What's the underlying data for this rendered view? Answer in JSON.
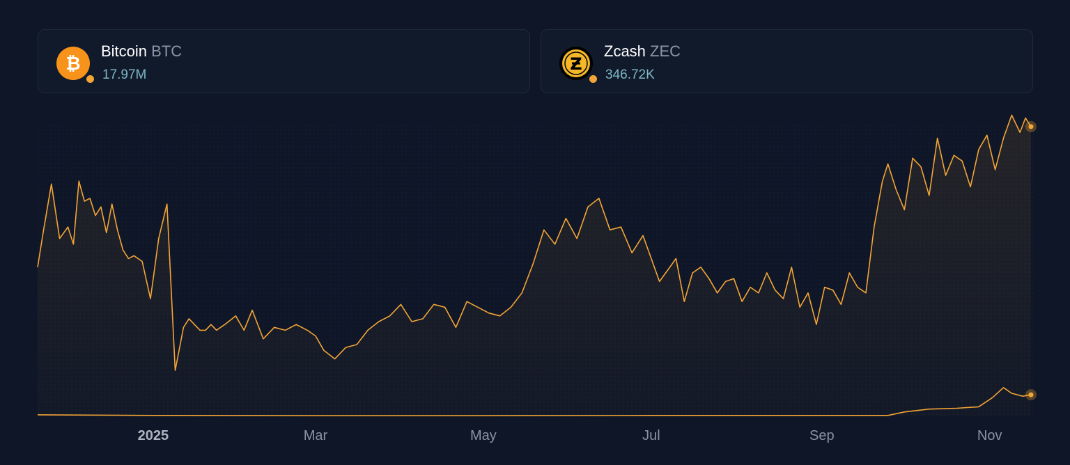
{
  "colors": {
    "background": "#0e1627",
    "line": "#f4a536",
    "value_text": "#7fb8c6",
    "ticker_text": "#8d96a6"
  },
  "cards": [
    {
      "name": "Bitcoin",
      "ticker": "BTC",
      "value": "17.97M",
      "icon": "bitcoin-icon"
    },
    {
      "name": "Zcash",
      "ticker": "ZEC",
      "value": "346.72K",
      "icon": "zcash-icon"
    }
  ],
  "chart_data": {
    "type": "line",
    "x_tick_labels": [
      "2025",
      "Mar",
      "May",
      "Jul",
      "Sep",
      "Nov"
    ],
    "x_ticks": [
      "2025-01-01",
      "2025-03-01",
      "2025-05-01",
      "2025-07-01",
      "2025-09-01",
      "2025-11-01"
    ],
    "xlim": [
      "2024-11-20",
      "2025-11-16"
    ],
    "ylim": [
      0,
      100
    ],
    "grid": false,
    "series": [
      {
        "icon": "bitcoin-icon",
        "color": "#f4a536",
        "x": [
          "2024-11-20",
          "2024-11-22",
          "2024-11-25",
          "2024-11-28",
          "2024-12-01",
          "2024-12-03",
          "2024-12-05",
          "2024-12-07",
          "2024-12-09",
          "2024-12-11",
          "2024-12-13",
          "2024-12-15",
          "2024-12-17",
          "2024-12-19",
          "2024-12-21",
          "2024-12-23",
          "2024-12-25",
          "2024-12-28",
          "2024-12-31",
          "2025-01-03",
          "2025-01-06",
          "2025-01-09",
          "2025-01-12",
          "2025-01-14",
          "2025-01-16",
          "2025-01-18",
          "2025-01-20",
          "2025-01-22",
          "2025-01-24",
          "2025-01-27",
          "2025-01-31",
          "2025-02-03",
          "2025-02-06",
          "2025-02-10",
          "2025-02-14",
          "2025-02-18",
          "2025-02-22",
          "2025-02-26",
          "2025-03-01",
          "2025-03-04",
          "2025-03-08",
          "2025-03-12",
          "2025-03-16",
          "2025-03-20",
          "2025-03-24",
          "2025-03-28",
          "2025-04-01",
          "2025-04-05",
          "2025-04-09",
          "2025-04-13",
          "2025-04-17",
          "2025-04-21",
          "2025-04-25",
          "2025-04-29",
          "2025-05-03",
          "2025-05-07",
          "2025-05-11",
          "2025-05-15",
          "2025-05-19",
          "2025-05-23",
          "2025-05-27",
          "2025-05-31",
          "2025-06-04",
          "2025-06-08",
          "2025-06-12",
          "2025-06-16",
          "2025-06-20",
          "2025-06-24",
          "2025-06-28",
          "2025-07-01",
          "2025-07-04",
          "2025-07-07",
          "2025-07-10",
          "2025-07-13",
          "2025-07-16",
          "2025-07-19",
          "2025-07-22",
          "2025-07-25",
          "2025-07-28",
          "2025-07-31",
          "2025-08-03",
          "2025-08-06",
          "2025-08-09",
          "2025-08-12",
          "2025-08-15",
          "2025-08-18",
          "2025-08-21",
          "2025-08-24",
          "2025-08-27",
          "2025-08-30",
          "2025-09-02",
          "2025-09-05",
          "2025-09-08",
          "2025-09-11",
          "2025-09-14",
          "2025-09-17",
          "2025-09-20",
          "2025-09-23",
          "2025-09-25",
          "2025-09-28",
          "2025-10-01",
          "2025-10-04",
          "2025-10-07",
          "2025-10-10",
          "2025-10-13",
          "2025-10-16",
          "2025-10-19",
          "2025-10-22",
          "2025-10-25",
          "2025-10-28",
          "2025-10-31",
          "2025-11-03",
          "2025-11-06",
          "2025-11-09",
          "2025-11-12",
          "2025-11-14",
          "2025-11-16"
        ],
        "values": [
          52,
          64,
          81,
          62,
          66,
          60,
          82,
          75,
          76,
          70,
          73,
          64,
          74,
          65,
          58,
          55,
          56,
          54,
          41,
          62,
          74,
          16,
          31,
          34,
          32,
          30,
          30,
          32,
          30,
          32,
          35,
          30,
          37,
          27,
          31,
          30,
          32,
          30,
          28,
          23,
          20,
          24,
          25,
          30,
          33,
          35,
          39,
          33,
          34,
          39,
          38,
          31,
          40,
          38,
          36,
          35,
          38,
          43,
          53,
          65,
          60,
          69,
          62,
          73,
          76,
          65,
          66,
          57,
          63,
          55,
          47,
          51,
          55,
          40,
          50,
          52,
          48,
          43,
          47,
          48,
          40,
          45,
          43,
          50,
          44,
          41,
          52,
          38,
          43,
          32,
          45,
          44,
          39,
          50,
          45,
          43,
          66,
          82,
          88,
          79,
          72,
          90,
          87,
          77,
          97,
          84,
          91,
          89,
          80,
          93,
          98,
          86,
          97,
          105,
          99,
          104,
          101
        ]
      },
      {
        "icon": "zcash-icon",
        "color": "#f4a536",
        "x": [
          "2024-11-20",
          "2025-01-01",
          "2025-03-01",
          "2025-05-01",
          "2025-07-01",
          "2025-08-15",
          "2025-09-25",
          "2025-10-01",
          "2025-10-10",
          "2025-10-20",
          "2025-10-28",
          "2025-11-02",
          "2025-11-06",
          "2025-11-09",
          "2025-11-13",
          "2025-11-16"
        ],
        "values": [
          0.5,
          0.3,
          0.2,
          0.2,
          0.3,
          0.3,
          0.3,
          1.5,
          2.5,
          2.8,
          3.3,
          6.5,
          10,
          8,
          7,
          7.5
        ]
      }
    ]
  }
}
